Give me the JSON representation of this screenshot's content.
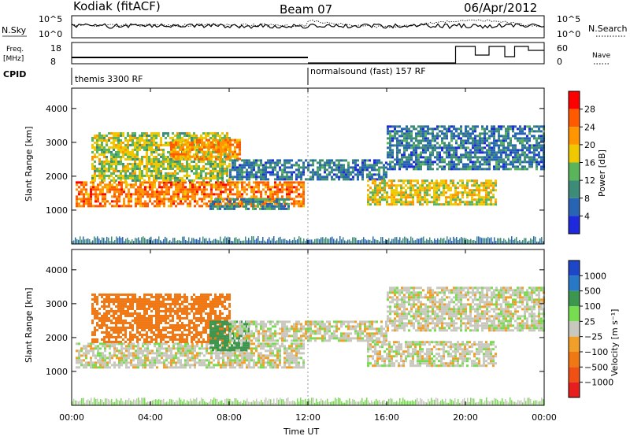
{
  "header": {
    "station": "Kodiak (fitACF)",
    "beam": "Beam 07",
    "date": "06/Apr/2012"
  },
  "strips": {
    "nsky_label": "N.Sky",
    "nsky_ticks": [
      "10^5",
      "10^0"
    ],
    "nsearch_label": "N.Search",
    "freq_label_1": "Freq.",
    "freq_label_2": "[MHz]",
    "freq_ticks": [
      "18",
      "8"
    ],
    "nave_label": "Nave",
    "nave_ticks": [
      "60",
      "0"
    ],
    "cpid_label": "CPID",
    "cpid_segments": [
      "themis 3300 RF",
      "normalsound (fast) 157 RF"
    ]
  },
  "colorbars": {
    "power": {
      "label": "Power [dB]",
      "ticks": [
        "28",
        "24",
        "20",
        "16",
        "12",
        "8",
        "4"
      ],
      "colors": [
        "#ff0000",
        "#ff5a00",
        "#ff9600",
        "#f0c800",
        "#5ab45a",
        "#3c8c78",
        "#2864b4",
        "#1e28dc"
      ]
    },
    "velocity": {
      "label": "Velocity [m s⁻¹]",
      "ticks": [
        "1000",
        "500",
        "100",
        "25",
        "−25",
        "−100",
        "−500",
        "−1000"
      ],
      "colors": [
        "#1e46c8",
        "#2878c8",
        "#3c9650",
        "#78dc50",
        "#c8c8be",
        "#f0a028",
        "#f07814",
        "#f05014",
        "#e61e1e"
      ]
    }
  },
  "chart_data": [
    {
      "type": "heatmap",
      "title": "",
      "xlabel": "",
      "ylabel": "Slant Range [km]",
      "xlim": [
        "00:00",
        "24:00"
      ],
      "ylim": [
        0,
        4600
      ],
      "yticks": [
        1000,
        2000,
        3000,
        4000
      ],
      "quantity": "Power [dB]",
      "bands": [
        {
          "t0": 0.2,
          "t1": 11.8,
          "r0": 1150,
          "r1": 1850,
          "power": 24
        },
        {
          "t0": 1.0,
          "t1": 8.0,
          "r0": 1900,
          "r1": 3300,
          "power": 16
        },
        {
          "t0": 5.0,
          "t1": 8.5,
          "r0": 2500,
          "r1": 3100,
          "power": 22
        },
        {
          "t0": 7.0,
          "t1": 11.0,
          "r0": 1050,
          "r1": 1350,
          "power": 10
        },
        {
          "t0": 8.0,
          "t1": 16.0,
          "r0": 1900,
          "r1": 2500,
          "power": 8
        },
        {
          "t0": 15.0,
          "t1": 21.5,
          "r0": 1200,
          "r1": 1900,
          "power": 18
        },
        {
          "t0": 16.0,
          "t1": 24.0,
          "r0": 2200,
          "r1": 3500,
          "power": 8
        }
      ]
    },
    {
      "type": "heatmap",
      "title": "",
      "xlabel": "Time UT",
      "ylabel": "Slant Range [km]",
      "xlim": [
        "00:00",
        "24:00"
      ],
      "xticks": [
        "00:00",
        "04:00",
        "08:00",
        "12:00",
        "16:00",
        "20:00",
        "00:00"
      ],
      "ylim": [
        0,
        4600
      ],
      "yticks": [
        1000,
        2000,
        3000,
        4000
      ],
      "quantity": "Velocity [m s⁻¹]",
      "bands": [
        {
          "t0": 0.2,
          "t1": 11.8,
          "r0": 1150,
          "r1": 1850,
          "velocity": 0
        },
        {
          "t0": 1.0,
          "t1": 8.0,
          "r0": 1900,
          "r1": 3300,
          "velocity": -300
        },
        {
          "t0": 7.0,
          "t1": 9.0,
          "r0": 1600,
          "r1": 2500,
          "velocity": 150
        },
        {
          "t0": 8.0,
          "t1": 16.0,
          "r0": 1900,
          "r1": 2500,
          "velocity": 0
        },
        {
          "t0": 15.0,
          "t1": 21.5,
          "r0": 1200,
          "r1": 1900,
          "velocity": 0
        },
        {
          "t0": 16.0,
          "t1": 24.0,
          "r0": 2200,
          "r1": 3500,
          "velocity": 0
        }
      ]
    }
  ]
}
